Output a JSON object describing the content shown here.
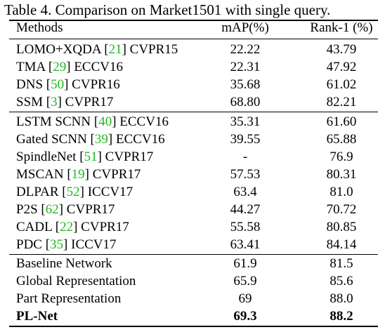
{
  "caption": "Table 4. Comparison on Market1501 with single query.",
  "header": {
    "methods": "Methods",
    "map": "mAP(%)",
    "rank1": "Rank-1 (%)"
  },
  "rows": [
    {
      "pre": "LOMO+XQDA [",
      "ref": "21",
      "post": "] CVPR15",
      "map": "22.22",
      "rank1": "43.79"
    },
    {
      "pre": "TMA [",
      "ref": "29",
      "post": "] ECCV16",
      "map": "22.31",
      "rank1": "47.92"
    },
    {
      "pre": "DNS [",
      "ref": "50",
      "post": "] CVPR16",
      "map": "35.68",
      "rank1": "61.02"
    },
    {
      "pre": "SSM [",
      "ref": "3",
      "post": "] CVPR17",
      "map": "68.80",
      "rank1": "82.21"
    },
    {
      "pre": "LSTM SCNN [",
      "ref": "40",
      "post": "] ECCV16",
      "map": "35.31",
      "rank1": "61.60"
    },
    {
      "pre": "Gated SCNN [",
      "ref": "39",
      "post": "] ECCV16",
      "map": "39.55",
      "rank1": "65.88"
    },
    {
      "pre": "SpindleNet [",
      "ref": "51",
      "post": "] CVPR17",
      "map": "-",
      "rank1": "76.9"
    },
    {
      "pre": "MSCAN [",
      "ref": "19",
      "post": "] CVPR17",
      "map": "57.53",
      "rank1": "80.31"
    },
    {
      "pre": "DLPAR [",
      "ref": "52",
      "post": "] ICCV17",
      "map": "63.4",
      "rank1": "81.0"
    },
    {
      "pre": "P2S [",
      "ref": "62",
      "post": "] CVPR17",
      "map": "44.27",
      "rank1": "70.72"
    },
    {
      "pre": "CADL [",
      "ref": "22",
      "post": "] CVPR17",
      "map": "55.58",
      "rank1": "80.85"
    },
    {
      "pre": "PDC [",
      "ref": "35",
      "post": "] ICCV17",
      "map": "63.41",
      "rank1": "84.14"
    },
    {
      "pre": "Baseline Network",
      "ref": "",
      "post": "",
      "map": "61.9",
      "rank1": "81.5"
    },
    {
      "pre": "Global Representation",
      "ref": "",
      "post": "",
      "map": "65.9",
      "rank1": "85.6"
    },
    {
      "pre": "Part Representation",
      "ref": "",
      "post": "",
      "map": "69",
      "rank1": "88.0"
    },
    {
      "pre": "PL-Net",
      "ref": "",
      "post": "",
      "map": "69.3",
      "rank1": "88.2"
    }
  ],
  "citation_color": "#1fb81f"
}
